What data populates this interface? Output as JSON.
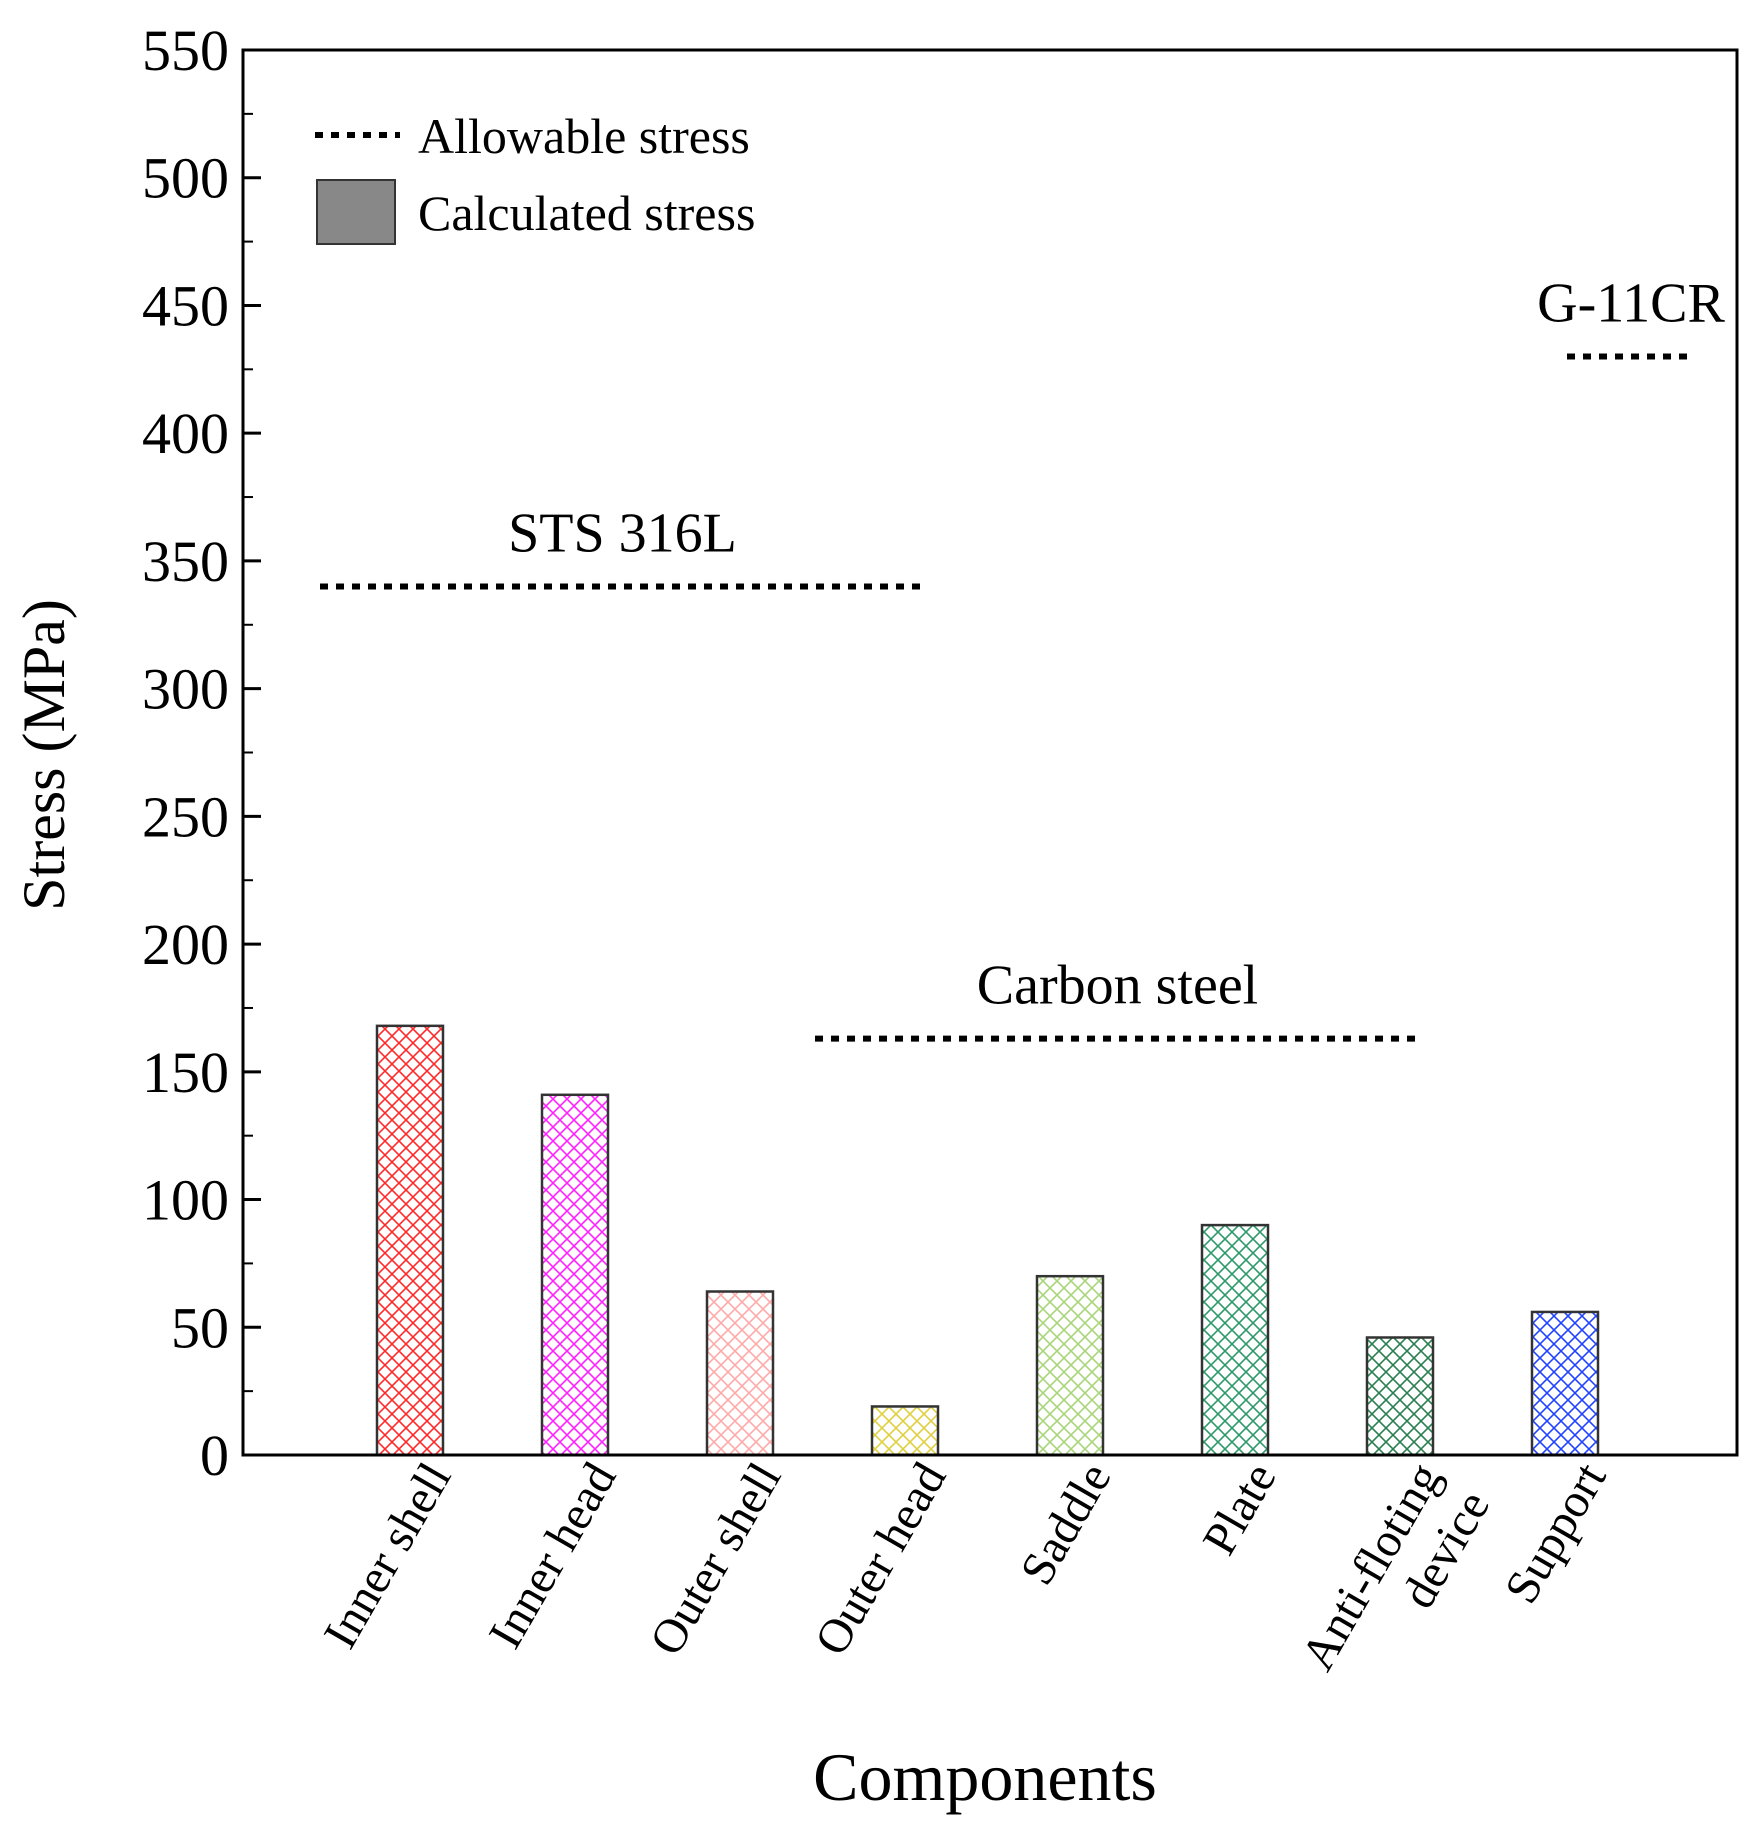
{
  "chart_data": {
    "type": "bar",
    "xlabel": "Components",
    "ylabel": "Stress (MPa)",
    "ylim": [
      0,
      550
    ],
    "yticks": [
      0,
      50,
      100,
      150,
      200,
      250,
      300,
      350,
      400,
      450,
      500,
      550
    ],
    "grid": false,
    "legend": {
      "placement": "top-left",
      "items": [
        {
          "label": "Allowable stress",
          "style": "dotted-line"
        },
        {
          "label": "Calculated stress",
          "style": "filled-box",
          "color": "#888888"
        }
      ]
    },
    "categories": [
      {
        "lines": [
          "Inner shell"
        ]
      },
      {
        "lines": [
          "Inner head"
        ]
      },
      {
        "lines": [
          "Outer shell"
        ]
      },
      {
        "lines": [
          "Outer head"
        ]
      },
      {
        "lines": [
          "Saddle"
        ]
      },
      {
        "lines": [
          "Plate"
        ]
      },
      {
        "lines": [
          "Anti-floting",
          "device"
        ]
      },
      {
        "lines": [
          "Support"
        ]
      }
    ],
    "series": [
      {
        "name": "Calculated stress",
        "values": [
          168,
          141,
          64,
          19,
          70,
          90,
          46,
          56
        ],
        "colors": [
          "#ff2a2a",
          "#ff22ff",
          "#ffaaaa",
          "#e0d040",
          "#aad67a",
          "#2e9a6a",
          "#2a8050",
          "#2244ff"
        ]
      }
    ],
    "allowable_stress": [
      {
        "material": "STS 316L",
        "value": 340,
        "from_category": 0,
        "to_category": 3
      },
      {
        "material": "Carbon steel",
        "value": 163,
        "from_category": 3,
        "to_category": 6
      },
      {
        "material": "G-11CR",
        "value": 430,
        "from_category": 7,
        "to_category": 7
      }
    ]
  }
}
